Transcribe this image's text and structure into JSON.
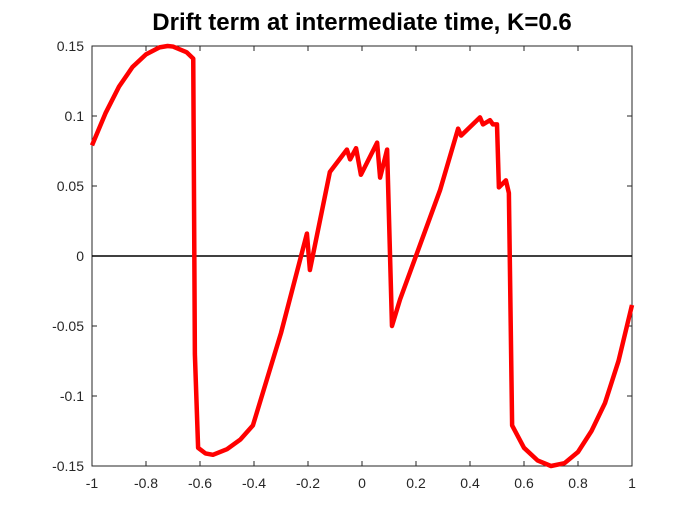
{
  "chart_data": {
    "type": "line",
    "title": "Drift term at intermediate time, K=0.6",
    "x": [
      -1,
      -0.95,
      -0.9,
      -0.85,
      -0.8,
      -0.75,
      -0.72,
      -0.7,
      -0.65,
      -0.625,
      -0.619,
      -0.607,
      -0.58,
      -0.552,
      -0.5,
      -0.45,
      -0.404,
      -0.3,
      -0.204,
      -0.193,
      -0.119,
      -0.056,
      -0.044,
      -0.022,
      -0.004,
      0.056,
      0.067,
      0.093,
      0.111,
      0.141,
      0.215,
      0.289,
      0.356,
      0.367,
      0.437,
      0.448,
      0.474,
      0.485,
      0.5,
      0.507,
      0.533,
      0.544,
      0.556,
      0.6,
      0.65,
      0.7,
      0.75,
      0.8,
      0.85,
      0.9,
      0.95,
      1
    ],
    "series": [
      {
        "color": "#ff0000",
        "values": [
          0.079,
          0.102,
          0.121,
          0.135,
          0.144,
          0.149,
          0.15,
          0.1496,
          0.1456,
          0.141,
          -0.07,
          -0.137,
          -0.141,
          -0.142,
          -0.138,
          -0.131,
          -0.121,
          -0.055,
          0.016,
          -0.01,
          0.06,
          0.076,
          0.069,
          0.077,
          0.058,
          0.081,
          0.056,
          0.076,
          -0.05,
          -0.031,
          0.008,
          0.047,
          0.091,
          0.086,
          0.099,
          0.094,
          0.097,
          0.094,
          0.094,
          0.049,
          0.054,
          0.045,
          -0.121,
          -0.137,
          -0.146,
          -0.15,
          -0.148,
          -0.14,
          -0.125,
          -0.105,
          -0.075,
          -0.035
        ]
      }
    ],
    "reference_line": {
      "y": 0,
      "color": "#000000"
    },
    "xlim": [
      -1,
      1
    ],
    "ylim": [
      -0.15,
      0.15
    ],
    "xticks": [
      -1,
      -0.8,
      -0.6,
      -0.4,
      -0.2,
      0,
      0.2,
      0.4,
      0.6,
      0.8,
      1
    ],
    "yticks": [
      -0.15,
      -0.1,
      -0.05,
      0,
      0.05,
      0.1,
      0.15
    ]
  }
}
